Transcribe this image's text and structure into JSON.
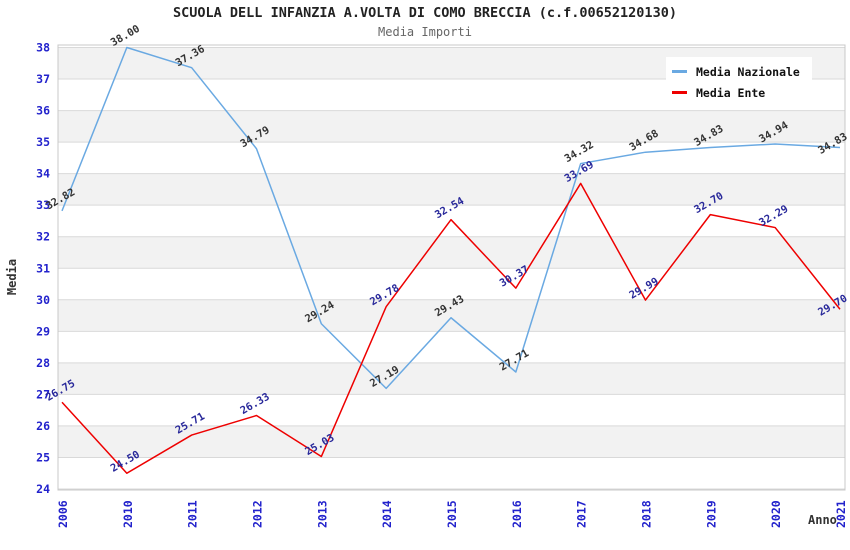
{
  "chart_data": {
    "type": "line",
    "title": "SCUOLA DELL INFANZIA A.VOLTA DI COMO BRECCIA (c.f.00652120130)",
    "subtitle": "Media Importi",
    "xlabel": "Anno",
    "ylabel": "Media",
    "ylim": [
      24,
      38
    ],
    "y_tick_step": 1,
    "grid": true,
    "plot_bands_odd_gray": true,
    "legend_position": "top-right",
    "categories": [
      "2006",
      "2010",
      "2011",
      "2012",
      "2013",
      "2014",
      "2015",
      "2016",
      "2017",
      "2018",
      "2019",
      "2020",
      "2021"
    ],
    "series": [
      {
        "name": "Media Nazionale",
        "color": "#6aa9e2",
        "label_color": "#333333",
        "values": [
          32.82,
          38.0,
          37.36,
          34.79,
          29.24,
          27.19,
          29.43,
          27.71,
          34.32,
          34.68,
          34.83,
          34.94,
          34.83
        ]
      },
      {
        "name": "Media Ente",
        "color": "#ee0000",
        "label_color": "#28289a",
        "values": [
          26.75,
          24.5,
          25.71,
          26.33,
          25.03,
          29.78,
          32.54,
          30.37,
          33.69,
          29.99,
          32.7,
          32.29,
          29.7
        ]
      }
    ],
    "colors": {
      "axis_tick": "#2222cc",
      "band": "#f2f2f2",
      "gridline": "#d9d9d9",
      "border": "#c8c8c8"
    }
  }
}
